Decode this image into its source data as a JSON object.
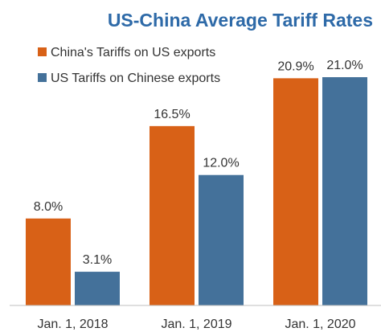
{
  "colors": {
    "title": "#2e6aa8",
    "china_series": "#d86117",
    "us_series": "#44719a",
    "axis": "#bfbfbf"
  },
  "chart_data": {
    "type": "bar",
    "title": "US-China Average Tariff Rates",
    "categories": [
      "Jan. 1, 2018",
      "Jan. 1, 2019",
      "Jan. 1, 2020"
    ],
    "series": [
      {
        "name": "China's Tariffs on US exports",
        "values": [
          8.0,
          16.5,
          20.9
        ],
        "labels": [
          "8.0%",
          "16.5%",
          "20.9%"
        ]
      },
      {
        "name": "US Tariffs on Chinese exports",
        "values": [
          3.1,
          12.0,
          21.0
        ],
        "labels": [
          "3.1%",
          "12.0%",
          "21.0%"
        ]
      }
    ],
    "ylim": [
      0,
      21
    ],
    "legend": "top-left",
    "grid": false
  }
}
